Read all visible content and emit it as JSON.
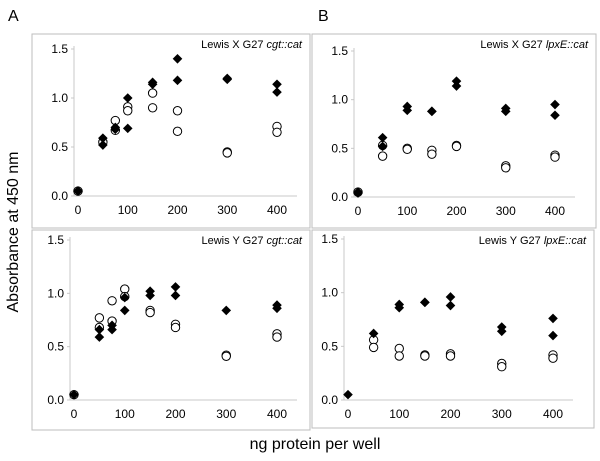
{
  "figure": {
    "ylabel": "Absorbance at 450 nm",
    "xlabel": "ng protein per well",
    "panel_letters": [
      "A",
      "B"
    ]
  },
  "chart_data": [
    {
      "type": "scatter",
      "title_plain": "Lewis X G27 ",
      "title_italic": "cgt::cat",
      "xlim": [
        0,
        400
      ],
      "ylim": [
        0,
        1.5
      ],
      "xticks": [
        0,
        100,
        200,
        300,
        400
      ],
      "yticks": [
        "0.0",
        "0.5",
        "1.0",
        "1.5"
      ],
      "series": [
        {
          "name": "filled-diamond",
          "points": [
            [
              0,
              0.05
            ],
            [
              0,
              0.05
            ],
            [
              50,
              0.59
            ],
            [
              50,
              0.52
            ],
            [
              75,
              0.7
            ],
            [
              75,
              0.68
            ],
            [
              100,
              1.0
            ],
            [
              100,
              0.69
            ],
            [
              150,
              1.16
            ],
            [
              150,
              1.14
            ],
            [
              200,
              1.4
            ],
            [
              200,
              1.18
            ],
            [
              300,
              1.2
            ],
            [
              300,
              1.19
            ],
            [
              400,
              1.14
            ],
            [
              400,
              1.06
            ]
          ]
        },
        {
          "name": "open-circle",
          "points": [
            [
              0,
              0.05
            ],
            [
              50,
              0.55
            ],
            [
              75,
              0.77
            ],
            [
              75,
              0.67
            ],
            [
              100,
              0.91
            ],
            [
              100,
              0.87
            ],
            [
              150,
              1.05
            ],
            [
              150,
              0.9
            ],
            [
              200,
              0.87
            ],
            [
              200,
              0.66
            ],
            [
              300,
              0.45
            ],
            [
              300,
              0.44
            ],
            [
              400,
              0.71
            ],
            [
              400,
              0.65
            ]
          ]
        }
      ]
    },
    {
      "type": "scatter",
      "title_plain": "Lewis X G27 ",
      "title_italic": "lpxE::cat",
      "xlim": [
        0,
        400
      ],
      "ylim": [
        0,
        1.5
      ],
      "xticks": [
        0,
        100,
        200,
        300,
        400
      ],
      "yticks": [
        "0.0",
        "0.5",
        "1.0",
        "1.5"
      ],
      "series": [
        {
          "name": "filled-diamond",
          "points": [
            [
              0,
              0.05
            ],
            [
              0,
              0.04
            ],
            [
              50,
              0.61
            ],
            [
              50,
              0.52
            ],
            [
              100,
              0.93
            ],
            [
              100,
              0.89
            ],
            [
              150,
              0.88
            ],
            [
              150,
              0.88
            ],
            [
              200,
              1.19
            ],
            [
              200,
              1.14
            ],
            [
              300,
              0.91
            ],
            [
              300,
              0.88
            ],
            [
              400,
              0.95
            ],
            [
              400,
              0.84
            ]
          ]
        },
        {
          "name": "open-circle",
          "points": [
            [
              0,
              0.05
            ],
            [
              50,
              0.53
            ],
            [
              50,
              0.42
            ],
            [
              100,
              0.5
            ],
            [
              100,
              0.49
            ],
            [
              150,
              0.48
            ],
            [
              150,
              0.44
            ],
            [
              200,
              0.53
            ],
            [
              200,
              0.52
            ],
            [
              300,
              0.32
            ],
            [
              300,
              0.3
            ],
            [
              400,
              0.43
            ],
            [
              400,
              0.41
            ]
          ]
        }
      ]
    },
    {
      "type": "scatter",
      "title_plain": "Lewis Y G27 ",
      "title_italic": "cgt::cat",
      "xlim": [
        0,
        400
      ],
      "ylim": [
        0,
        1.5
      ],
      "xticks": [
        0,
        100,
        200,
        300,
        400
      ],
      "yticks": [
        "0.0",
        "0.5",
        "1.0",
        "1.5"
      ],
      "series": [
        {
          "name": "filled-diamond",
          "points": [
            [
              0,
              0.05
            ],
            [
              50,
              0.66
            ],
            [
              50,
              0.59
            ],
            [
              75,
              0.7
            ],
            [
              75,
              0.66
            ],
            [
              100,
              0.96
            ],
            [
              100,
              0.84
            ],
            [
              150,
              1.02
            ],
            [
              150,
              0.98
            ],
            [
              200,
              1.06
            ],
            [
              200,
              0.98
            ],
            [
              300,
              0.84
            ],
            [
              400,
              0.89
            ],
            [
              400,
              0.86
            ]
          ]
        },
        {
          "name": "open-circle",
          "points": [
            [
              0,
              0.05
            ],
            [
              50,
              0.77
            ],
            [
              50,
              0.68
            ],
            [
              75,
              0.93
            ],
            [
              75,
              0.74
            ],
            [
              100,
              1.04
            ],
            [
              100,
              0.97
            ],
            [
              150,
              0.84
            ],
            [
              150,
              0.82
            ],
            [
              200,
              0.71
            ],
            [
              200,
              0.68
            ],
            [
              300,
              0.42
            ],
            [
              300,
              0.41
            ],
            [
              400,
              0.62
            ],
            [
              400,
              0.59
            ]
          ]
        }
      ]
    },
    {
      "type": "scatter",
      "title_plain": "Lewis Y G27 ",
      "title_italic": "lpxE::cat",
      "xlim": [
        0,
        400
      ],
      "ylim": [
        0,
        1.5
      ],
      "xticks": [
        0,
        100,
        200,
        300,
        400
      ],
      "yticks": [
        "0.0",
        "0.5",
        "1.0",
        "1.5"
      ],
      "series": [
        {
          "name": "filled-diamond",
          "points": [
            [
              0,
              0.05
            ],
            [
              50,
              0.62
            ],
            [
              100,
              0.89
            ],
            [
              100,
              0.86
            ],
            [
              150,
              0.91
            ],
            [
              150,
              0.91
            ],
            [
              200,
              0.96
            ],
            [
              200,
              0.88
            ],
            [
              300,
              0.68
            ],
            [
              300,
              0.64
            ],
            [
              400,
              0.76
            ],
            [
              400,
              0.6
            ]
          ]
        },
        {
          "name": "open-circle",
          "points": [
            [
              50,
              0.56
            ],
            [
              50,
              0.49
            ],
            [
              100,
              0.48
            ],
            [
              100,
              0.41
            ],
            [
              150,
              0.42
            ],
            [
              150,
              0.41
            ],
            [
              200,
              0.43
            ],
            [
              200,
              0.41
            ],
            [
              300,
              0.34
            ],
            [
              300,
              0.31
            ],
            [
              400,
              0.42
            ],
            [
              400,
              0.39
            ]
          ]
        }
      ]
    }
  ]
}
